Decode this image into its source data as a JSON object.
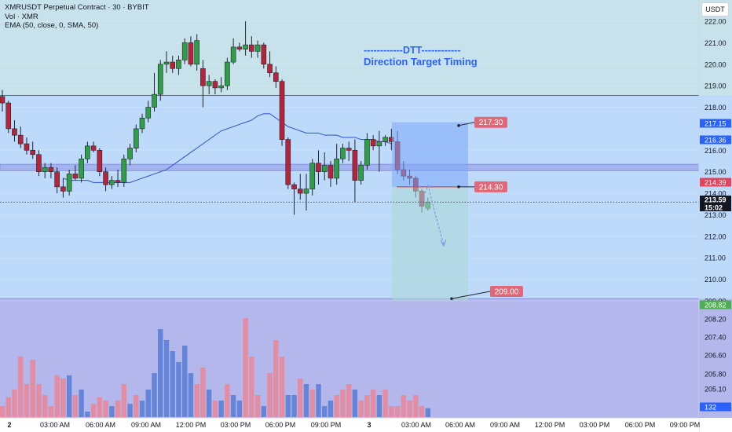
{
  "header": {
    "symbol_line": "XMRUSDT Perpetual Contract · 30 · BYBIT",
    "volume_line": "Vol · XMR",
    "indicator_line": "EMA (50, close, 0, SMA, 50)",
    "currency": "USDT"
  },
  "annotation": {
    "title": "------------DTT------------",
    "subtitle": "Direction Target Timing"
  },
  "colors": {
    "up": "#2e9e47",
    "down": "#b5243a",
    "ema": "#3d5fd1",
    "vol_up": "#5b7fd6",
    "vol_down": "#e8879a",
    "zone_green_blue": "#c7e2ea",
    "zone_blue": "#bddafb",
    "zone_purple": "#b4b7ec",
    "label_red": "#e06878",
    "label_blue": "#2962ff",
    "label_green": "#4caf50"
  },
  "price_scale": {
    "ticks": [
      "222.00",
      "221.00",
      "220.00",
      "219.00",
      "218.00",
      "216.00",
      "215.00",
      "214.00",
      "213.00",
      "212.00",
      "211.00",
      "210.00",
      "209.00"
    ],
    "vol_ticks": [
      "208.20",
      "207.40",
      "206.60",
      "205.80",
      "205.10",
      "204.40"
    ]
  },
  "price_tags": [
    {
      "text": "217.15",
      "kind": "blue"
    },
    {
      "text": "216.36",
      "kind": "blue"
    },
    {
      "text": "214.39",
      "kind": "red"
    },
    {
      "text": "213.59",
      "kind": "dark"
    },
    {
      "text": "15:02",
      "kind": "dark"
    },
    {
      "text": "208.82",
      "kind": "green"
    },
    {
      "text": "132",
      "kind": "blue"
    }
  ],
  "target_labels": [
    "217.30",
    "214.30",
    "209.00"
  ],
  "time_axis": [
    "2",
    "03:00 AM",
    "06:00 AM",
    "09:00 AM",
    "12:00 PM",
    "03:00 PM",
    "06:00 PM",
    "09:00 PM",
    "3",
    "03:00 AM",
    "06:00 AM",
    "09:00 AM",
    "12:00 PM",
    "03:00 PM",
    "06:00 PM",
    "09:00 PM"
  ],
  "chart_data": {
    "type": "candlestick",
    "interval": "30",
    "ylim": [
      208.5,
      222.5
    ],
    "ema_period": 50,
    "candles": [
      {
        "o": 218.5,
        "h": 218.8,
        "l": 217.8,
        "c": 218.2
      },
      {
        "o": 218.2,
        "h": 218.3,
        "l": 216.8,
        "c": 217.0
      },
      {
        "o": 217.0,
        "h": 217.4,
        "l": 216.4,
        "c": 216.7
      },
      {
        "o": 216.7,
        "h": 217.1,
        "l": 216.1,
        "c": 216.3
      },
      {
        "o": 216.3,
        "h": 216.6,
        "l": 215.8,
        "c": 216.0
      },
      {
        "o": 216.0,
        "h": 216.4,
        "l": 215.6,
        "c": 215.8
      },
      {
        "o": 215.8,
        "h": 216.0,
        "l": 214.8,
        "c": 215.0
      },
      {
        "o": 215.0,
        "h": 215.4,
        "l": 214.7,
        "c": 215.2
      },
      {
        "o": 215.2,
        "h": 215.4,
        "l": 214.7,
        "c": 215.0
      },
      {
        "o": 215.0,
        "h": 215.2,
        "l": 214.0,
        "c": 214.3
      },
      {
        "o": 214.3,
        "h": 214.7,
        "l": 213.8,
        "c": 214.1
      },
      {
        "o": 214.1,
        "h": 215.1,
        "l": 213.9,
        "c": 214.9
      },
      {
        "o": 214.9,
        "h": 215.3,
        "l": 214.6,
        "c": 214.7
      },
      {
        "o": 214.7,
        "h": 215.8,
        "l": 214.5,
        "c": 215.6
      },
      {
        "o": 215.6,
        "h": 216.4,
        "l": 215.4,
        "c": 216.2
      },
      {
        "o": 216.2,
        "h": 216.4,
        "l": 215.9,
        "c": 216.0
      },
      {
        "o": 216.0,
        "h": 216.1,
        "l": 214.8,
        "c": 215.0
      },
      {
        "o": 215.0,
        "h": 215.2,
        "l": 214.1,
        "c": 214.4
      },
      {
        "o": 214.4,
        "h": 214.8,
        "l": 214.2,
        "c": 214.6
      },
      {
        "o": 214.6,
        "h": 215.1,
        "l": 214.3,
        "c": 214.5
      },
      {
        "o": 214.5,
        "h": 215.8,
        "l": 214.3,
        "c": 215.6
      },
      {
        "o": 215.6,
        "h": 216.3,
        "l": 215.3,
        "c": 216.1
      },
      {
        "o": 216.1,
        "h": 217.2,
        "l": 215.9,
        "c": 217.0
      },
      {
        "o": 217.0,
        "h": 217.7,
        "l": 216.8,
        "c": 217.5
      },
      {
        "o": 217.5,
        "h": 218.3,
        "l": 217.3,
        "c": 218.0
      },
      {
        "o": 218.0,
        "h": 219.6,
        "l": 217.8,
        "c": 218.6
      },
      {
        "o": 218.6,
        "h": 220.2,
        "l": 218.3,
        "c": 220.0
      },
      {
        "o": 220.0,
        "h": 220.6,
        "l": 219.6,
        "c": 220.1
      },
      {
        "o": 220.1,
        "h": 220.4,
        "l": 219.6,
        "c": 219.8
      },
      {
        "o": 219.8,
        "h": 220.4,
        "l": 219.5,
        "c": 220.2
      },
      {
        "o": 220.2,
        "h": 221.2,
        "l": 220.0,
        "c": 221.0
      },
      {
        "o": 221.0,
        "h": 221.3,
        "l": 219.9,
        "c": 220.0
      },
      {
        "o": 220.0,
        "h": 221.4,
        "l": 219.7,
        "c": 221.1
      },
      {
        "o": 219.8,
        "h": 220.2,
        "l": 218.0,
        "c": 219.0
      },
      {
        "o": 219.0,
        "h": 219.5,
        "l": 218.6,
        "c": 219.2
      },
      {
        "o": 219.2,
        "h": 219.3,
        "l": 218.6,
        "c": 218.9
      },
      {
        "o": 218.9,
        "h": 219.4,
        "l": 218.7,
        "c": 219.0
      },
      {
        "o": 219.0,
        "h": 220.3,
        "l": 218.8,
        "c": 220.1
      },
      {
        "o": 220.1,
        "h": 221.2,
        "l": 220.0,
        "c": 220.8
      },
      {
        "o": 220.8,
        "h": 221.0,
        "l": 220.6,
        "c": 220.7
      },
      {
        "o": 220.7,
        "h": 222.0,
        "l": 220.4,
        "c": 220.9
      },
      {
        "o": 220.9,
        "h": 221.3,
        "l": 220.3,
        "c": 220.6
      },
      {
        "o": 220.6,
        "h": 221.1,
        "l": 220.3,
        "c": 220.9
      },
      {
        "o": 220.9,
        "h": 221.0,
        "l": 219.8,
        "c": 220.0
      },
      {
        "o": 220.0,
        "h": 220.6,
        "l": 219.4,
        "c": 219.6
      },
      {
        "o": 219.6,
        "h": 219.9,
        "l": 218.9,
        "c": 219.2
      },
      {
        "o": 219.2,
        "h": 219.3,
        "l": 216.2,
        "c": 216.5
      },
      {
        "o": 216.5,
        "h": 216.6,
        "l": 214.2,
        "c": 214.4
      },
      {
        "o": 214.4,
        "h": 214.5,
        "l": 213.0,
        "c": 214.2
      },
      {
        "o": 214.2,
        "h": 214.9,
        "l": 213.7,
        "c": 214.0
      },
      {
        "o": 214.0,
        "h": 214.9,
        "l": 213.2,
        "c": 214.2
      },
      {
        "o": 214.2,
        "h": 215.6,
        "l": 213.9,
        "c": 215.4
      },
      {
        "o": 215.4,
        "h": 216.0,
        "l": 214.4,
        "c": 215.0
      },
      {
        "o": 215.0,
        "h": 215.9,
        "l": 214.6,
        "c": 215.3
      },
      {
        "o": 215.3,
        "h": 215.5,
        "l": 214.3,
        "c": 214.7
      },
      {
        "o": 214.7,
        "h": 216.3,
        "l": 214.4,
        "c": 215.6
      },
      {
        "o": 215.6,
        "h": 216.3,
        "l": 215.4,
        "c": 216.1
      },
      {
        "o": 216.1,
        "h": 216.4,
        "l": 215.5,
        "c": 216.0
      },
      {
        "o": 216.0,
        "h": 216.5,
        "l": 213.6,
        "c": 214.6
      },
      {
        "o": 214.6,
        "h": 215.5,
        "l": 214.4,
        "c": 215.3
      },
      {
        "o": 215.3,
        "h": 216.8,
        "l": 215.1,
        "c": 216.5
      },
      {
        "o": 216.5,
        "h": 216.7,
        "l": 216.0,
        "c": 216.2
      },
      {
        "o": 216.2,
        "h": 216.9,
        "l": 215.0,
        "c": 216.4
      },
      {
        "o": 216.4,
        "h": 216.7,
        "l": 216.2,
        "c": 216.6
      },
      {
        "o": 216.6,
        "h": 217.0,
        "l": 216.0,
        "c": 216.4
      },
      {
        "o": 216.4,
        "h": 216.9,
        "l": 214.9,
        "c": 215.1
      },
      {
        "o": 215.1,
        "h": 215.5,
        "l": 214.6,
        "c": 214.8
      },
      {
        "o": 214.8,
        "h": 215.1,
        "l": 214.4,
        "c": 214.7
      },
      {
        "o": 214.7,
        "h": 214.8,
        "l": 213.8,
        "c": 214.1
      },
      {
        "o": 214.1,
        "h": 214.2,
        "l": 213.1,
        "c": 213.4
      },
      {
        "o": 213.3,
        "h": 213.8,
        "l": 213.2,
        "c": 213.59
      }
    ],
    "volume": [
      {
        "v": 10,
        "up": false
      },
      {
        "v": 18,
        "up": false
      },
      {
        "v": 25,
        "up": false
      },
      {
        "v": 55,
        "up": false
      },
      {
        "v": 30,
        "up": false
      },
      {
        "v": 52,
        "up": false
      },
      {
        "v": 30,
        "up": false
      },
      {
        "v": 20,
        "up": false
      },
      {
        "v": 10,
        "up": false
      },
      {
        "v": 38,
        "up": false
      },
      {
        "v": 35,
        "up": false
      },
      {
        "v": 38,
        "up": true
      },
      {
        "v": 20,
        "up": false
      },
      {
        "v": 25,
        "up": true
      },
      {
        "v": 5,
        "up": true
      },
      {
        "v": 12,
        "up": false
      },
      {
        "v": 18,
        "up": false
      },
      {
        "v": 15,
        "up": false
      },
      {
        "v": 10,
        "up": true
      },
      {
        "v": 15,
        "up": false
      },
      {
        "v": 30,
        "up": false
      },
      {
        "v": 12,
        "up": true
      },
      {
        "v": 20,
        "up": false
      },
      {
        "v": 15,
        "up": true
      },
      {
        "v": 25,
        "up": true
      },
      {
        "v": 40,
        "up": true
      },
      {
        "v": 80,
        "up": true
      },
      {
        "v": 70,
        "up": true
      },
      {
        "v": 60,
        "up": true
      },
      {
        "v": 50,
        "up": true
      },
      {
        "v": 65,
        "up": true
      },
      {
        "v": 40,
        "up": true
      },
      {
        "v": 30,
        "up": false
      },
      {
        "v": 45,
        "up": false
      },
      {
        "v": 25,
        "up": true
      },
      {
        "v": 15,
        "up": false
      },
      {
        "v": 15,
        "up": true
      },
      {
        "v": 30,
        "up": false
      },
      {
        "v": 20,
        "up": true
      },
      {
        "v": 15,
        "up": true
      },
      {
        "v": 90,
        "up": false
      },
      {
        "v": 55,
        "up": false
      },
      {
        "v": 20,
        "up": false
      },
      {
        "v": 10,
        "up": true
      },
      {
        "v": 40,
        "up": false
      },
      {
        "v": 70,
        "up": false
      },
      {
        "v": 55,
        "up": false
      },
      {
        "v": 20,
        "up": true
      },
      {
        "v": 20,
        "up": true
      },
      {
        "v": 35,
        "up": false
      },
      {
        "v": 30,
        "up": true
      },
      {
        "v": 25,
        "up": false
      },
      {
        "v": 30,
        "up": true
      },
      {
        "v": 10,
        "up": true
      },
      {
        "v": 15,
        "up": true
      },
      {
        "v": 20,
        "up": false
      },
      {
        "v": 25,
        "up": false
      },
      {
        "v": 30,
        "up": false
      },
      {
        "v": 25,
        "up": true
      },
      {
        "v": 15,
        "up": false
      },
      {
        "v": 20,
        "up": false
      },
      {
        "v": 25,
        "up": false
      },
      {
        "v": 20,
        "up": true
      },
      {
        "v": 25,
        "up": false
      },
      {
        "v": 10,
        "up": false
      },
      {
        "v": 10,
        "up": false
      },
      {
        "v": 20,
        "up": false
      },
      {
        "v": 15,
        "up": false
      },
      {
        "v": 20,
        "up": false
      },
      {
        "v": 10,
        "up": false
      },
      {
        "v": 8,
        "up": true
      }
    ],
    "ema_values": [
      214.7,
      214.6,
      214.6,
      214.6,
      214.6,
      214.5,
      214.5,
      214.5,
      214.5,
      214.5,
      214.5,
      214.5,
      214.6,
      214.7,
      214.8,
      214.9,
      215.0,
      215.1,
      215.3,
      215.5,
      215.7,
      215.9,
      216.1,
      216.3,
      216.5,
      216.7,
      216.9,
      217.0,
      217.1,
      217.2,
      217.3,
      217.4,
      217.6,
      217.7,
      217.7,
      217.5,
      217.3,
      217.1,
      217.0,
      216.9,
      216.8,
      216.8,
      216.8,
      216.7,
      216.7,
      216.7,
      216.6,
      216.6,
      216.6,
      216.5,
      216.5,
      216.5,
      216.4,
      216.4,
      216.3
    ],
    "zones": [
      {
        "from": 218.55,
        "to": 222.5,
        "name": "upper-zone"
      },
      {
        "from": 215.25,
        "to": 218.55,
        "name": "middle-zone"
      },
      {
        "from": 215.05,
        "to": 215.35,
        "name": "band"
      },
      {
        "from": 208.5,
        "to": 209.1,
        "name": "lower-zone"
      }
    ],
    "levels": {
      "current": 213.59,
      "entry": 214.3,
      "target_low": 209.0,
      "target_high": 217.3,
      "resistance": 218.55,
      "support": 209.1
    }
  }
}
